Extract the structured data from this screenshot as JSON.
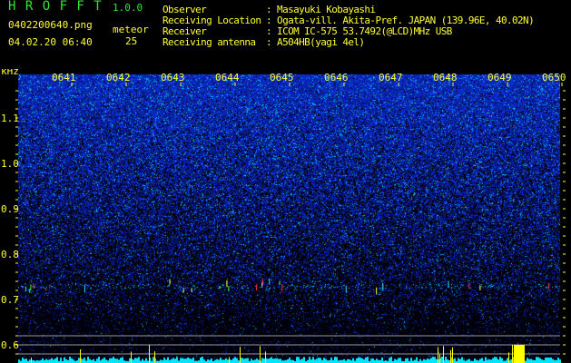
{
  "header": {
    "app_title": "H R O F F T",
    "version": "1.0.0",
    "filename": "0402200640.png",
    "datetime": "04.02.20 06:40",
    "meteor_label": "meteor",
    "meteor_count": "25",
    "info": [
      {
        "label": "Observer",
        "value": ": Masayuki Kobayashi"
      },
      {
        "label": "Receiving Location",
        "value": ": Ogata-vill. Akita-Pref. JAPAN (139.96E, 40.02N)"
      },
      {
        "label": "Receiver",
        "value": ": ICOM IC-575 53.7492(@LCD)MHz USB"
      },
      {
        "label": "Receiving antenna",
        "value": ": A504HB(yagi 4el)"
      }
    ]
  },
  "colors": {
    "text": "#ffff33",
    "title": "#33e633",
    "noise": "#1a2ad0",
    "echo_bar": "#ffff00",
    "baseline": "#00e5ff"
  },
  "chart_data": {
    "type": "heatmap",
    "ylabel": "kHz",
    "yticks": [
      "1.1",
      "1.0",
      "0.9",
      "0.8",
      "0.7",
      "0.6"
    ],
    "ylim": [
      0.56,
      1.19
    ],
    "xticks": [
      "0641",
      "0642",
      "0643",
      "0644",
      "0645",
      "0646",
      "0647",
      "0648",
      "0649",
      "0650"
    ],
    "echo_band_khz": 0.73
  }
}
